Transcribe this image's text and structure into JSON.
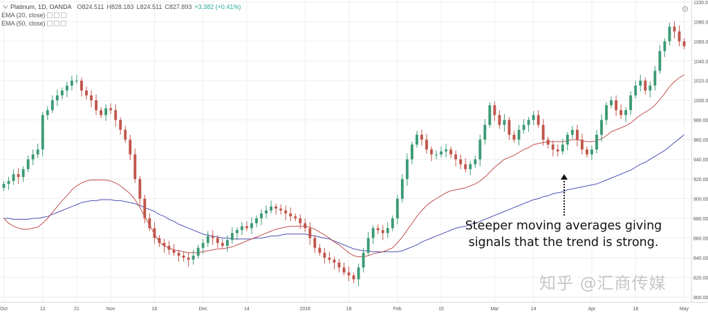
{
  "header": {
    "symbol": "Platinum, 1D, OANDA",
    "open": "O824.511",
    "high": "H828.183",
    "low": "L824.511",
    "close": "C827.893",
    "change": "+3.382 (+0.41%)",
    "indicators": [
      "EMA (20, close)",
      "EMA (50, close)"
    ]
  },
  "annotation": {
    "line1": "Steeper moving averages giving",
    "line2": "signals that the trend is strong."
  },
  "watermark": "知乎 @汇商传媒",
  "colors": {
    "up": "#3b9a74",
    "down": "#c0564b",
    "ema20": "#c0504d",
    "ema50": "#4a4fb2",
    "grid": "#eeeeee"
  },
  "chart_data": {
    "type": "candlestick",
    "title": "Platinum, 1D, OANDA",
    "y_axis_labels": [
      "1100.000",
      "1080.000",
      "1060.000",
      "1040.000",
      "1020.000",
      "1000.000",
      "980.000",
      "960.000",
      "940.000",
      "920.000",
      "900.000",
      "880.000",
      "860.000",
      "840.000",
      "820.000",
      "800.000"
    ],
    "y_axis_values": [
      1100,
      1080,
      1060,
      1040,
      1020,
      1000,
      980,
      960,
      940,
      920,
      900,
      880,
      860,
      840,
      820,
      800
    ],
    "x_axis_labels": [
      "Oct",
      "12",
      "21",
      "Nov",
      "16",
      "Dec",
      "14",
      "2016",
      "18",
      "Feb",
      "15",
      "Mar",
      "14",
      "Apr",
      "18",
      "May"
    ],
    "x_axis_index": [
      0,
      8,
      15,
      22,
      31,
      41,
      50,
      62,
      71,
      81,
      90,
      101,
      109,
      121,
      130,
      140
    ],
    "ylim": [
      795,
      1102
    ],
    "grid": true,
    "legend": "top-left",
    "closes": [
      915,
      918,
      925,
      922,
      930,
      940,
      945,
      950,
      985,
      990,
      1000,
      1005,
      1010,
      1015,
      1020,
      1020,
      1010,
      1005,
      1000,
      990,
      985,
      992,
      990,
      980,
      970,
      960,
      945,
      920,
      900,
      880,
      870,
      860,
      855,
      852,
      848,
      845,
      842,
      840,
      838,
      842,
      850,
      855,
      862,
      860,
      855,
      852,
      858,
      865,
      868,
      872,
      870,
      875,
      880,
      885,
      888,
      892,
      890,
      888,
      885,
      882,
      880,
      875,
      870,
      860,
      850,
      845,
      840,
      838,
      835,
      830,
      825,
      822,
      818,
      830,
      845,
      860,
      870,
      868,
      865,
      870,
      880,
      900,
      920,
      940,
      955,
      965,
      960,
      950,
      945,
      945,
      948,
      950,
      945,
      940,
      935,
      930,
      935,
      940,
      960,
      975,
      995,
      985,
      975,
      980,
      965,
      960,
      970,
      975,
      980,
      985,
      975,
      960,
      955,
      950,
      948,
      955,
      965,
      970,
      960,
      950,
      945,
      950,
      965,
      980,
      995,
      1000,
      990,
      985,
      990,
      1005,
      1015,
      1020,
      1010,
      1015,
      1030,
      1050,
      1060,
      1075,
      1070,
      1060,
      1055
    ],
    "ema20": [
      880,
      875,
      872,
      870,
      869,
      869,
      870,
      871,
      875,
      880,
      886,
      892,
      898,
      903,
      909,
      913,
      916,
      918,
      919,
      919,
      919,
      919,
      918,
      916,
      913,
      909,
      905,
      899,
      891,
      882,
      873,
      864,
      856,
      852,
      850,
      848,
      847,
      846,
      845,
      845,
      845,
      846,
      847,
      848,
      849,
      849,
      850,
      851,
      853,
      855,
      857,
      859,
      861,
      863,
      865,
      867,
      869,
      870,
      871,
      872,
      872,
      872,
      872,
      871,
      869,
      866,
      863,
      860,
      856,
      853,
      849,
      845,
      842,
      841,
      841,
      842,
      844,
      845,
      846,
      848,
      850,
      855,
      861,
      868,
      875,
      882,
      888,
      893,
      897,
      900,
      903,
      906,
      908,
      909,
      910,
      911,
      913,
      915,
      918,
      922,
      927,
      932,
      936,
      940,
      942,
      944,
      947,
      950,
      952,
      955,
      956,
      957,
      958,
      958,
      958,
      958,
      959,
      960,
      960,
      959,
      958,
      958,
      959,
      961,
      964,
      968,
      970,
      972,
      974,
      977,
      981,
      985,
      988,
      991,
      995,
      1001,
      1007,
      1014,
      1019,
      1023,
      1026
    ],
    "ema50": [
      880,
      880,
      879,
      879,
      879,
      879,
      880,
      880,
      881,
      882,
      884,
      886,
      888,
      890,
      892,
      894,
      896,
      897,
      898,
      898,
      899,
      899,
      899,
      898,
      898,
      897,
      896,
      895,
      893,
      891,
      889,
      887,
      884,
      882,
      879,
      877,
      874,
      872,
      870,
      868,
      866,
      864,
      863,
      862,
      861,
      860,
      860,
      859,
      859,
      859,
      859,
      859,
      860,
      860,
      861,
      862,
      862,
      863,
      864,
      864,
      864,
      864,
      864,
      863,
      862,
      861,
      860,
      859,
      857,
      855,
      853,
      851,
      849,
      848,
      847,
      847,
      846,
      846,
      846,
      846,
      846,
      846,
      847,
      849,
      851,
      853,
      856,
      858,
      860,
      862,
      864,
      866,
      868,
      870,
      871,
      872,
      874,
      875,
      877,
      879,
      881,
      883,
      885,
      887,
      889,
      891,
      893,
      895,
      897,
      899,
      900,
      902,
      903,
      905,
      906,
      907,
      909,
      910,
      911,
      912,
      913,
      914,
      915,
      917,
      919,
      921,
      923,
      925,
      927,
      929,
      932,
      935,
      937,
      940,
      943,
      946,
      949,
      953,
      957,
      961,
      965
    ]
  }
}
